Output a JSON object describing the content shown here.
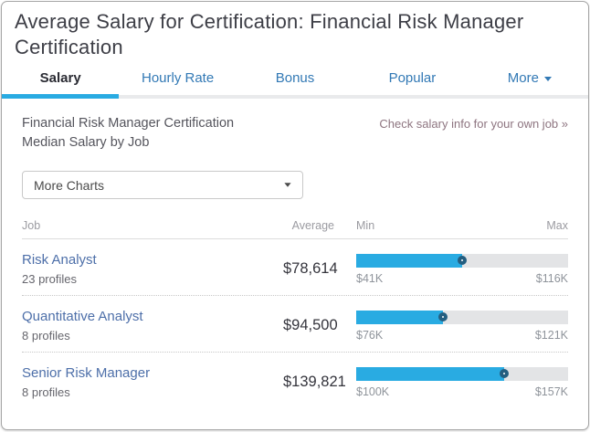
{
  "header": {
    "title": "Average Salary for Certification: Financial Risk Manager Certification"
  },
  "tabs": {
    "items": [
      {
        "label": "Salary",
        "active": true,
        "has_caret": false
      },
      {
        "label": "Hourly Rate",
        "active": false,
        "has_caret": false
      },
      {
        "label": "Bonus",
        "active": false,
        "has_caret": false
      },
      {
        "label": "Popular",
        "active": false,
        "has_caret": false
      },
      {
        "label": "More",
        "active": false,
        "has_caret": true
      }
    ]
  },
  "subheader": {
    "line1": "Financial Risk Manager Certification",
    "line2": "Median Salary by Job",
    "link_label": "Check salary info for your own job »"
  },
  "controls": {
    "more_charts_label": "More Charts"
  },
  "table": {
    "columns": {
      "job": "Job",
      "average": "Average",
      "min": "Min",
      "max": "Max"
    },
    "rows": [
      {
        "job": "Risk Analyst",
        "profiles": "23 profiles",
        "average": "$78,614",
        "min_label": "$41K",
        "max_label": "$116K",
        "min": 41000,
        "max": 116000,
        "value": 78614
      },
      {
        "job": "Quantitative Analyst",
        "profiles": "8 profiles",
        "average": "$94,500",
        "min_label": "$76K",
        "max_label": "$121K",
        "min": 76000,
        "max": 121000,
        "value": 94500
      },
      {
        "job": "Senior Risk Manager",
        "profiles": "8 profiles",
        "average": "$139,821",
        "min_label": "$100K",
        "max_label": "$157K",
        "min": 100000,
        "max": 157000,
        "value": 139821
      }
    ]
  },
  "colors": {
    "accent_blue": "#29abe2",
    "tab_link_blue": "#3279b5",
    "job_link_blue": "#4d6fa9",
    "handle_ring": "#245e80",
    "promo_link": "#8e7580",
    "track_gray": "#e3e4e6"
  }
}
